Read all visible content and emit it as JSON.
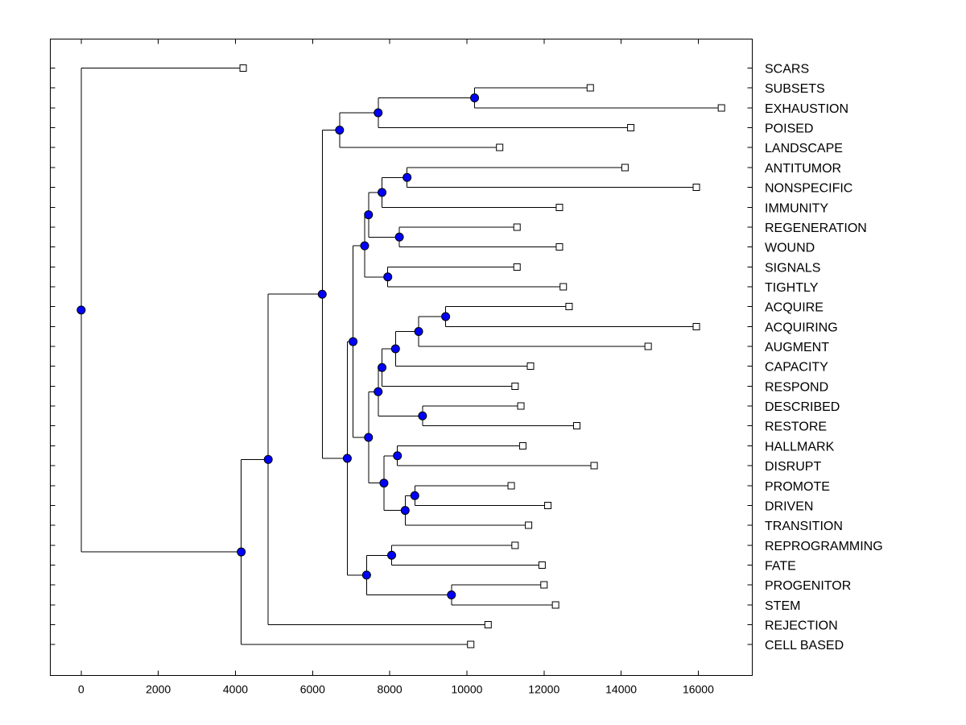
{
  "chart_data": {
    "type": "dendrogram",
    "title": "",
    "xlabel": "",
    "ylabel": "",
    "xlim": [
      -800,
      17400
    ],
    "xticks": [
      0,
      2000,
      4000,
      6000,
      8000,
      10000,
      12000,
      14000,
      16000
    ],
    "node_color": "#0000ff",
    "leaf_marker_color": "#ffffff",
    "leaves": [
      {
        "id": "SCARS",
        "label": "SCARS",
        "x": 4200
      },
      {
        "id": "SUBSETS",
        "label": "SUBSETS",
        "x": 13200
      },
      {
        "id": "EXHAUSTION",
        "label": "EXHAUSTION",
        "x": 16600
      },
      {
        "id": "POISED",
        "label": "POISED",
        "x": 14250
      },
      {
        "id": "LANDSCAPE",
        "label": "LANDSCAPE",
        "x": 10850
      },
      {
        "id": "ANTITUMOR",
        "label": "ANTITUMOR",
        "x": 14100
      },
      {
        "id": "NONSPECIFIC",
        "label": "NONSPECIFIC",
        "x": 15950
      },
      {
        "id": "IMMUNITY",
        "label": "IMMUNITY",
        "x": 12400
      },
      {
        "id": "REGENERATION",
        "label": "REGENERATION",
        "x": 11300
      },
      {
        "id": "WOUND",
        "label": "WOUND",
        "x": 12400
      },
      {
        "id": "SIGNALS",
        "label": "SIGNALS",
        "x": 11300
      },
      {
        "id": "TIGHTLY",
        "label": "TIGHTLY",
        "x": 12500
      },
      {
        "id": "ACQUIRE",
        "label": "ACQUIRE",
        "x": 12650
      },
      {
        "id": "ACQUIRING",
        "label": "ACQUIRING",
        "x": 15950
      },
      {
        "id": "AUGMENT",
        "label": "AUGMENT",
        "x": 14700
      },
      {
        "id": "CAPACITY",
        "label": "CAPACITY",
        "x": 11650
      },
      {
        "id": "RESPOND",
        "label": "RESPOND",
        "x": 11250
      },
      {
        "id": "DESCRIBED",
        "label": "DESCRIBED",
        "x": 11400
      },
      {
        "id": "RESTORE",
        "label": "RESTORE",
        "x": 12850
      },
      {
        "id": "HALLMARK",
        "label": "HALLMARK",
        "x": 11450
      },
      {
        "id": "DISRUPT",
        "label": "DISRUPT",
        "x": 13300
      },
      {
        "id": "PROMOTE",
        "label": "PROMOTE",
        "x": 11150
      },
      {
        "id": "DRIVEN",
        "label": "DRIVEN",
        "x": 12100
      },
      {
        "id": "TRANSITION",
        "label": "TRANSITION",
        "x": 11600
      },
      {
        "id": "REPROGRAMMING",
        "label": "REPROGRAMMING",
        "x": 11250
      },
      {
        "id": "FATE",
        "label": "FATE",
        "x": 11950
      },
      {
        "id": "PROGENITOR",
        "label": "PROGENITOR",
        "x": 12000
      },
      {
        "id": "STEM",
        "label": "STEM",
        "x": 12300
      },
      {
        "id": "REJECTION",
        "label": "REJECTION",
        "x": 10550
      },
      {
        "id": "CELL BASED",
        "label": "CELL BASED",
        "x": 10100
      }
    ],
    "nodes": [
      {
        "id": "n_subsets_exhaustion",
        "x": 10200,
        "children": [
          "SUBSETS",
          "EXHAUSTION"
        ]
      },
      {
        "id": "n_poised",
        "x": 7700,
        "children": [
          "n_subsets_exhaustion",
          "POISED"
        ]
      },
      {
        "id": "n_landscape",
        "x": 6700,
        "children": [
          "n_poised",
          "LANDSCAPE"
        ]
      },
      {
        "id": "n_antitumor_nonspecific",
        "x": 8450,
        "children": [
          "ANTITUMOR",
          "NONSPECIFIC"
        ]
      },
      {
        "id": "n_immunity",
        "x": 7800,
        "children": [
          "n_antitumor_nonspecific",
          "IMMUNITY"
        ]
      },
      {
        "id": "n_regen_wound",
        "x": 8250,
        "children": [
          "REGENERATION",
          "WOUND"
        ]
      },
      {
        "id": "n_immunity_regen",
        "x": 7450,
        "children": [
          "n_immunity",
          "n_regen_wound"
        ]
      },
      {
        "id": "n_signals_tightly",
        "x": 7950,
        "children": [
          "SIGNALS",
          "TIGHTLY"
        ]
      },
      {
        "id": "n_upper_mid",
        "x": 7350,
        "children": [
          "n_immunity_regen",
          "n_signals_tightly"
        ]
      },
      {
        "id": "n_acquire_acquiring",
        "x": 9450,
        "children": [
          "ACQUIRE",
          "ACQUIRING"
        ]
      },
      {
        "id": "n_augment",
        "x": 8750,
        "children": [
          "n_acquire_acquiring",
          "AUGMENT"
        ]
      },
      {
        "id": "n_capacity",
        "x": 8150,
        "children": [
          "n_augment",
          "CAPACITY"
        ]
      },
      {
        "id": "n_respond",
        "x": 7800,
        "children": [
          "n_capacity",
          "RESPOND"
        ]
      },
      {
        "id": "n_described_restore",
        "x": 8850,
        "children": [
          "DESCRIBED",
          "RESTORE"
        ]
      },
      {
        "id": "n_respond_described",
        "x": 7700,
        "children": [
          "n_respond",
          "n_described_restore"
        ]
      },
      {
        "id": "n_hallmark_disrupt",
        "x": 8200,
        "children": [
          "HALLMARK",
          "DISRUPT"
        ]
      },
      {
        "id": "n_promote_driven",
        "x": 8650,
        "children": [
          "PROMOTE",
          "DRIVEN"
        ]
      },
      {
        "id": "n_transition",
        "x": 8400,
        "children": [
          "n_promote_driven",
          "TRANSITION"
        ]
      },
      {
        "id": "n_hallmark_transition",
        "x": 7850,
        "children": [
          "n_hallmark_disrupt",
          "n_transition"
        ]
      },
      {
        "id": "n_mid_lower",
        "x": 7450,
        "children": [
          "n_respond_described",
          "n_hallmark_transition"
        ]
      },
      {
        "id": "n_middle",
        "x": 7050,
        "children": [
          "n_upper_mid",
          "n_mid_lower"
        ]
      },
      {
        "id": "n_reprog_fate",
        "x": 8050,
        "children": [
          "REPROGRAMMING",
          "FATE"
        ]
      },
      {
        "id": "n_progenitor_stem",
        "x": 9600,
        "children": [
          "PROGENITOR",
          "STEM"
        ]
      },
      {
        "id": "n_stem_group",
        "x": 7400,
        "children": [
          "n_reprog_fate",
          "n_progenitor_stem"
        ]
      },
      {
        "id": "n_middle_stem",
        "x": 6900,
        "children": [
          "n_middle",
          "n_stem_group"
        ]
      },
      {
        "id": "n_main",
        "x": 6250,
        "children": [
          "n_landscape",
          "n_middle_stem"
        ]
      },
      {
        "id": "n_rejection",
        "x": 4850,
        "children": [
          "n_main",
          "REJECTION"
        ]
      },
      {
        "id": "n_cell_based",
        "x": 4150,
        "children": [
          "n_rejection",
          "CELL BASED"
        ]
      },
      {
        "id": "n_root",
        "x": 0,
        "children": [
          "SCARS",
          "n_cell_based"
        ]
      }
    ]
  }
}
